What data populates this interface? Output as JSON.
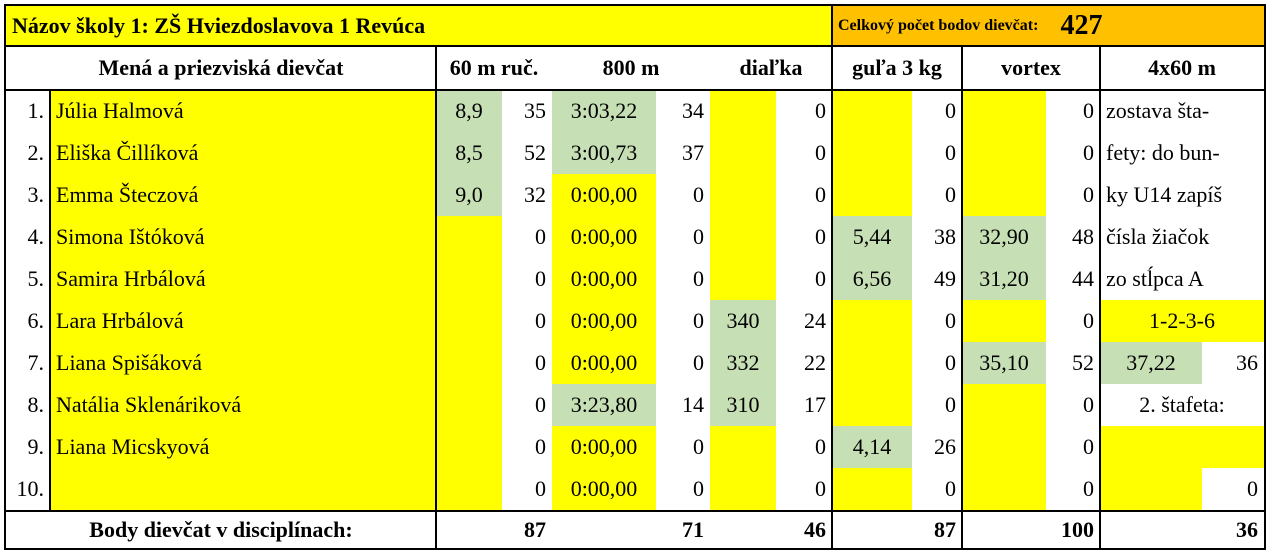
{
  "school_label": "Názov školy 1: ZŠ Hviezdoslavova 1 Revúca",
  "total_label": "Celkový počet bodov dievčat:",
  "total_points": "427",
  "headers": {
    "names": "Mená a priezviská dievčat",
    "run60": "60 m ruč.",
    "run800": "800 m",
    "longjump": "diaľka",
    "shot": "guľa 3 kg",
    "vortex": "vortex",
    "relay": "4x60 m"
  },
  "rows": [
    {
      "num": "1.",
      "name": "Júlia Halmová",
      "r60": "8,9",
      "p60": "35",
      "r800": "3:03,22",
      "p800": "34",
      "jump": "",
      "pjump": "0",
      "shot": "",
      "pshot": "0",
      "vortex": "",
      "pvortex": "0",
      "relay": "zostava šta-"
    },
    {
      "num": "2.",
      "name": "Eliška Čillíková",
      "r60": "8,5",
      "p60": "52",
      "r800": "3:00,73",
      "p800": "37",
      "jump": "",
      "pjump": "0",
      "shot": "",
      "pshot": "0",
      "vortex": "",
      "pvortex": "0",
      "relay": "fety: do bun-"
    },
    {
      "num": "3.",
      "name": "Emma Šteczová",
      "r60": "9,0",
      "p60": "32",
      "r800": "0:00,00",
      "p800": "0",
      "jump": "",
      "pjump": "0",
      "shot": "",
      "pshot": "0",
      "vortex": "",
      "pvortex": "0",
      "relay": "ky U14 zapíš"
    },
    {
      "num": "4.",
      "name": "Simona Ištóková",
      "r60": "",
      "p60": "0",
      "r800": "0:00,00",
      "p800": "0",
      "jump": "",
      "pjump": "0",
      "shot": "5,44",
      "pshot": "38",
      "vortex": "32,90",
      "pvortex": "48",
      "relay": "čísla žiačok"
    },
    {
      "num": "5.",
      "name": "Samira Hrbálová",
      "r60": "",
      "p60": "0",
      "r800": "0:00,00",
      "p800": "0",
      "jump": "",
      "pjump": "0",
      "shot": "6,56",
      "pshot": "49",
      "vortex": "31,20",
      "pvortex": "44",
      "relay": "zo stĺpca A"
    },
    {
      "num": "6.",
      "name": "Lara Hrbálová",
      "r60": "",
      "p60": "0",
      "r800": "0:00,00",
      "p800": "0",
      "jump": "340",
      "pjump": "24",
      "shot": "",
      "pshot": "0",
      "vortex": "",
      "pvortex": "0",
      "relay": "1-2-3-6"
    },
    {
      "num": "7.",
      "name": "Liana Spišáková",
      "r60": "",
      "p60": "0",
      "r800": "0:00,00",
      "p800": "0",
      "jump": "332",
      "pjump": "22",
      "shot": "",
      "pshot": "0",
      "vortex": "35,10",
      "pvortex": "52",
      "relay_time": "37,22",
      "relay_points": "36"
    },
    {
      "num": "8.",
      "name": "Natália Sklenáriková",
      "r60": "",
      "p60": "0",
      "r800": "3:23,80",
      "p800": "14",
      "jump": "310",
      "pjump": "17",
      "shot": "",
      "pshot": "0",
      "vortex": "",
      "pvortex": "0",
      "relay": "2. štafeta:"
    },
    {
      "num": "9.",
      "name": "Liana Micskyová",
      "r60": "",
      "p60": "0",
      "r800": "0:00,00",
      "p800": "0",
      "jump": "",
      "pjump": "0",
      "shot": "4,14",
      "pshot": "26",
      "vortex": "",
      "pvortex": "0",
      "relay": ""
    },
    {
      "num": "10.",
      "name": "",
      "r60": "",
      "p60": "0",
      "r800": "0:00,00",
      "p800": "0",
      "jump": "",
      "pjump": "0",
      "shot": "",
      "pshot": "0",
      "vortex": "",
      "pvortex": "0",
      "relay_time": "",
      "relay_points": "0"
    }
  ],
  "footer": {
    "label": "Body dievčat v disciplínach:",
    "run60": "87",
    "run800": "71",
    "longjump": "46",
    "shot": "87",
    "vortex": "100",
    "relay": "36"
  }
}
